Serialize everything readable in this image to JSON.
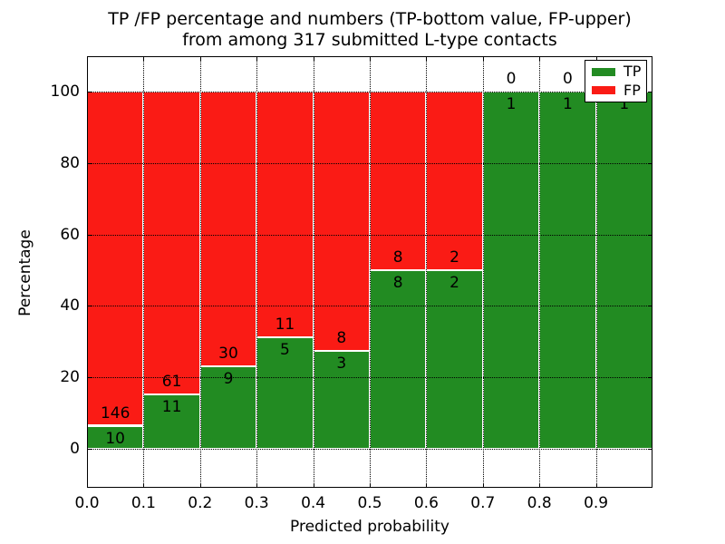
{
  "chart_data": {
    "type": "bar",
    "stacked": true,
    "title_line1": "TP /FP percentage and numbers (TP-bottom value, FP-upper)",
    "title_line2": "from among 317 submitted L-type contacts",
    "xlabel": "Predicted probability",
    "ylabel": "Percentage",
    "xlim": [
      0.0,
      1.0
    ],
    "ylim": [
      -11,
      110
    ],
    "grid": true,
    "bin_width": 0.1,
    "x_tick_labels": [
      "0.0",
      "0.1",
      "0.2",
      "0.3",
      "0.4",
      "0.5",
      "0.6",
      "0.7",
      "0.8",
      "0.9"
    ],
    "y_tick_labels": [
      "0",
      "20",
      "40",
      "60",
      "80",
      "100"
    ],
    "categories": [
      "0.0-0.1",
      "0.1-0.2",
      "0.2-0.3",
      "0.3-0.4",
      "0.4-0.5",
      "0.5-0.6",
      "0.6-0.7",
      "0.7-0.8",
      "0.8-0.9",
      "0.9-1.0"
    ],
    "series": [
      {
        "name": "TP",
        "color": "#228B22",
        "counts": [
          10,
          11,
          9,
          5,
          3,
          8,
          2,
          1,
          1,
          1
        ]
      },
      {
        "name": "FP",
        "color": "#FA1B15",
        "counts": [
          146,
          61,
          30,
          11,
          8,
          8,
          2,
          0,
          0,
          0
        ]
      }
    ],
    "tp_percent": [
      6.4,
      15.3,
      23.1,
      31.3,
      27.3,
      50.0,
      50.0,
      100.0,
      100.0,
      100.0
    ],
    "total_contacts": 317,
    "legend_position": "upper right"
  }
}
